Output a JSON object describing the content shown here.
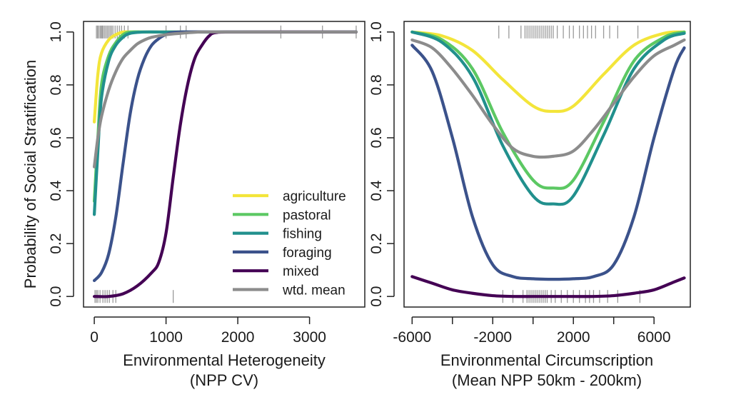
{
  "y_axis_title": "Probability of Social Stratification",
  "chart_data": [
    {
      "type": "line",
      "xlabel": "Environmental Heterogeneity",
      "xlabel_sub": "(NPP CV)",
      "ylabel": "Probability of Social Stratification",
      "xlim": [
        -150,
        3770
      ],
      "ylim": [
        -0.04,
        1.04
      ],
      "x_ticks": [
        0,
        1000,
        2000,
        3000
      ],
      "x_tick_labels": [
        "0",
        "1000",
        "2000",
        "3000"
      ],
      "y_ticks": [
        0.0,
        0.2,
        0.4,
        0.6,
        0.8,
        1.0
      ],
      "y_tick_labels": [
        "0.0",
        "0.2",
        "0.4",
        "0.6",
        "0.8",
        "1.0"
      ],
      "legend": {
        "position": "bottom-right",
        "entries": [
          {
            "label": "agriculture",
            "color": "#f3e53a"
          },
          {
            "label": "pastoral",
            "color": "#5cc863"
          },
          {
            "label": "fishing",
            "color": "#21908d"
          },
          {
            "label": "foraging",
            "color": "#3b528b"
          },
          {
            "label": "mixed",
            "color": "#440154"
          },
          {
            "label": "wtd. mean",
            "color": "#8c8c8c"
          }
        ]
      },
      "rug_top": [
        30,
        45,
        60,
        80,
        95,
        110,
        120,
        140,
        160,
        180,
        200,
        220,
        240,
        260,
        290,
        320,
        350,
        380,
        420,
        470,
        1000,
        1200,
        1280,
        2600,
        3180,
        3650
      ],
      "rug_bottom": [
        10,
        30,
        50,
        80,
        120,
        150,
        180,
        210,
        260,
        300,
        1100
      ],
      "series": [
        {
          "name": "agriculture",
          "color": "#f3e53a",
          "x": [
            0,
            50,
            100,
            200,
            300,
            400,
            500,
            700,
            1000,
            2000,
            3650
          ],
          "y": [
            0.66,
            0.84,
            0.92,
            0.97,
            0.99,
            1.0,
            1.0,
            1.0,
            1.0,
            1.0,
            1.0
          ]
        },
        {
          "name": "pastoral",
          "color": "#5cc863",
          "x": [
            0,
            50,
            100,
            200,
            300,
            400,
            500,
            700,
            1000,
            2000,
            3650
          ],
          "y": [
            0.36,
            0.6,
            0.8,
            0.91,
            0.96,
            0.99,
            1.0,
            1.0,
            1.0,
            1.0,
            1.0
          ]
        },
        {
          "name": "fishing",
          "color": "#21908d",
          "x": [
            0,
            50,
            100,
            200,
            300,
            400,
            500,
            700,
            1000,
            2000,
            3650
          ],
          "y": [
            0.31,
            0.55,
            0.75,
            0.89,
            0.95,
            0.98,
            0.995,
            1.0,
            1.0,
            1.0,
            1.0
          ]
        },
        {
          "name": "foraging",
          "color": "#3b528b",
          "x": [
            0,
            100,
            200,
            300,
            400,
            500,
            600,
            700,
            800,
            900,
            1000,
            1200,
            2000,
            3650
          ],
          "y": [
            0.06,
            0.09,
            0.16,
            0.3,
            0.5,
            0.69,
            0.82,
            0.9,
            0.95,
            0.975,
            0.99,
            1.0,
            1.0,
            1.0
          ]
        },
        {
          "name": "mixed",
          "color": "#440154",
          "x": [
            0,
            200,
            400,
            600,
            800,
            900,
            1000,
            1100,
            1200,
            1300,
            1400,
            1500,
            1600,
            1700,
            2000,
            3650
          ],
          "y": [
            0.0,
            0.0,
            0.01,
            0.04,
            0.09,
            0.13,
            0.24,
            0.45,
            0.65,
            0.8,
            0.9,
            0.95,
            0.985,
            0.998,
            1.0,
            1.0
          ]
        },
        {
          "name": "wtd. mean",
          "color": "#8c8c8c",
          "x": [
            0,
            50,
            100,
            200,
            300,
            400,
            500,
            600,
            700,
            800,
            1000,
            1200,
            1500,
            2000,
            3650
          ],
          "y": [
            0.49,
            0.6,
            0.68,
            0.78,
            0.85,
            0.9,
            0.93,
            0.955,
            0.97,
            0.98,
            0.99,
            0.995,
            1.0,
            1.0,
            1.0
          ]
        }
      ]
    },
    {
      "type": "line",
      "xlabel": "Environmental Circumscription",
      "xlabel_sub": "(Mean NPP 50km - 200km)",
      "xlim": [
        -6400,
        7800
      ],
      "ylim": [
        -0.04,
        1.04
      ],
      "x_ticks": [
        -6000,
        -4000,
        -2000,
        0,
        2000,
        4000,
        6000
      ],
      "x_tick_labels": [
        "-6000",
        "",
        "-2000",
        "",
        "2000",
        "",
        "6000"
      ],
      "y_ticks": [
        0.0,
        0.2,
        0.4,
        0.6,
        0.8,
        1.0
      ],
      "y_tick_labels": [
        "0.0",
        "0.2",
        "0.4",
        "0.6",
        "0.8",
        "1.0"
      ],
      "rug_top": [
        -1700,
        -1200,
        -600,
        -400,
        -300,
        -200,
        -100,
        0,
        100,
        200,
        300,
        400,
        500,
        600,
        700,
        800,
        900,
        1000,
        1200,
        1500,
        1800,
        2000,
        2300,
        2500,
        2700,
        2900,
        3100,
        3500,
        3800,
        4200,
        5200
      ],
      "rug_bottom": [
        -1500,
        -1000,
        -500,
        -300,
        -200,
        -100,
        0,
        100,
        200,
        300,
        400,
        500,
        600,
        700,
        900,
        1100,
        1400,
        1700,
        2000,
        2300,
        2600,
        2800,
        3000,
        3300,
        3700,
        4200,
        5300
      ],
      "series": [
        {
          "name": "agriculture",
          "color": "#f3e53a",
          "x": [
            -6000,
            -4500,
            -3000,
            -1500,
            0,
            1000,
            2000,
            3500,
            5000,
            6500,
            7500
          ],
          "y": [
            1.0,
            0.985,
            0.93,
            0.82,
            0.72,
            0.7,
            0.72,
            0.84,
            0.95,
            0.995,
            1.0
          ]
        },
        {
          "name": "pastoral",
          "color": "#5cc863",
          "x": [
            -6000,
            -4500,
            -3000,
            -1500,
            0,
            1000,
            2000,
            3500,
            5000,
            6500,
            7500
          ],
          "y": [
            1.0,
            0.97,
            0.86,
            0.62,
            0.44,
            0.41,
            0.44,
            0.66,
            0.89,
            0.98,
            1.0
          ]
        },
        {
          "name": "fishing",
          "color": "#21908d",
          "x": [
            -6000,
            -4500,
            -3000,
            -1500,
            0,
            1000,
            2000,
            3500,
            5000,
            6500,
            7500
          ],
          "y": [
            1.0,
            0.96,
            0.83,
            0.57,
            0.38,
            0.35,
            0.38,
            0.61,
            0.86,
            0.97,
            0.995
          ]
        },
        {
          "name": "foraging",
          "color": "#3b528b",
          "x": [
            -6000,
            -5000,
            -4000,
            -3000,
            -2000,
            -1000,
            0,
            1000,
            2000,
            3000,
            4000,
            5000,
            6000,
            7000,
            7500
          ],
          "y": [
            0.95,
            0.85,
            0.6,
            0.3,
            0.12,
            0.075,
            0.067,
            0.065,
            0.067,
            0.075,
            0.12,
            0.3,
            0.6,
            0.86,
            0.94
          ]
        },
        {
          "name": "mixed",
          "color": "#440154",
          "x": [
            -6000,
            -5000,
            -4000,
            -3000,
            -2000,
            -1000,
            0,
            1000,
            2000,
            3000,
            4000,
            5000,
            6000,
            7000,
            7500
          ],
          "y": [
            0.075,
            0.05,
            0.025,
            0.012,
            0.003,
            0.0,
            0.0,
            0.0,
            0.0,
            0.0,
            0.003,
            0.012,
            0.025,
            0.055,
            0.07
          ]
        },
        {
          "name": "wtd. mean",
          "color": "#8c8c8c",
          "x": [
            -6000,
            -5000,
            -4000,
            -3000,
            -2000,
            -1000,
            0,
            1000,
            2000,
            3000,
            4000,
            5000,
            6000,
            7000,
            7500
          ],
          "y": [
            0.97,
            0.94,
            0.86,
            0.76,
            0.65,
            0.56,
            0.53,
            0.53,
            0.55,
            0.63,
            0.73,
            0.83,
            0.91,
            0.95,
            0.97
          ]
        }
      ]
    }
  ]
}
